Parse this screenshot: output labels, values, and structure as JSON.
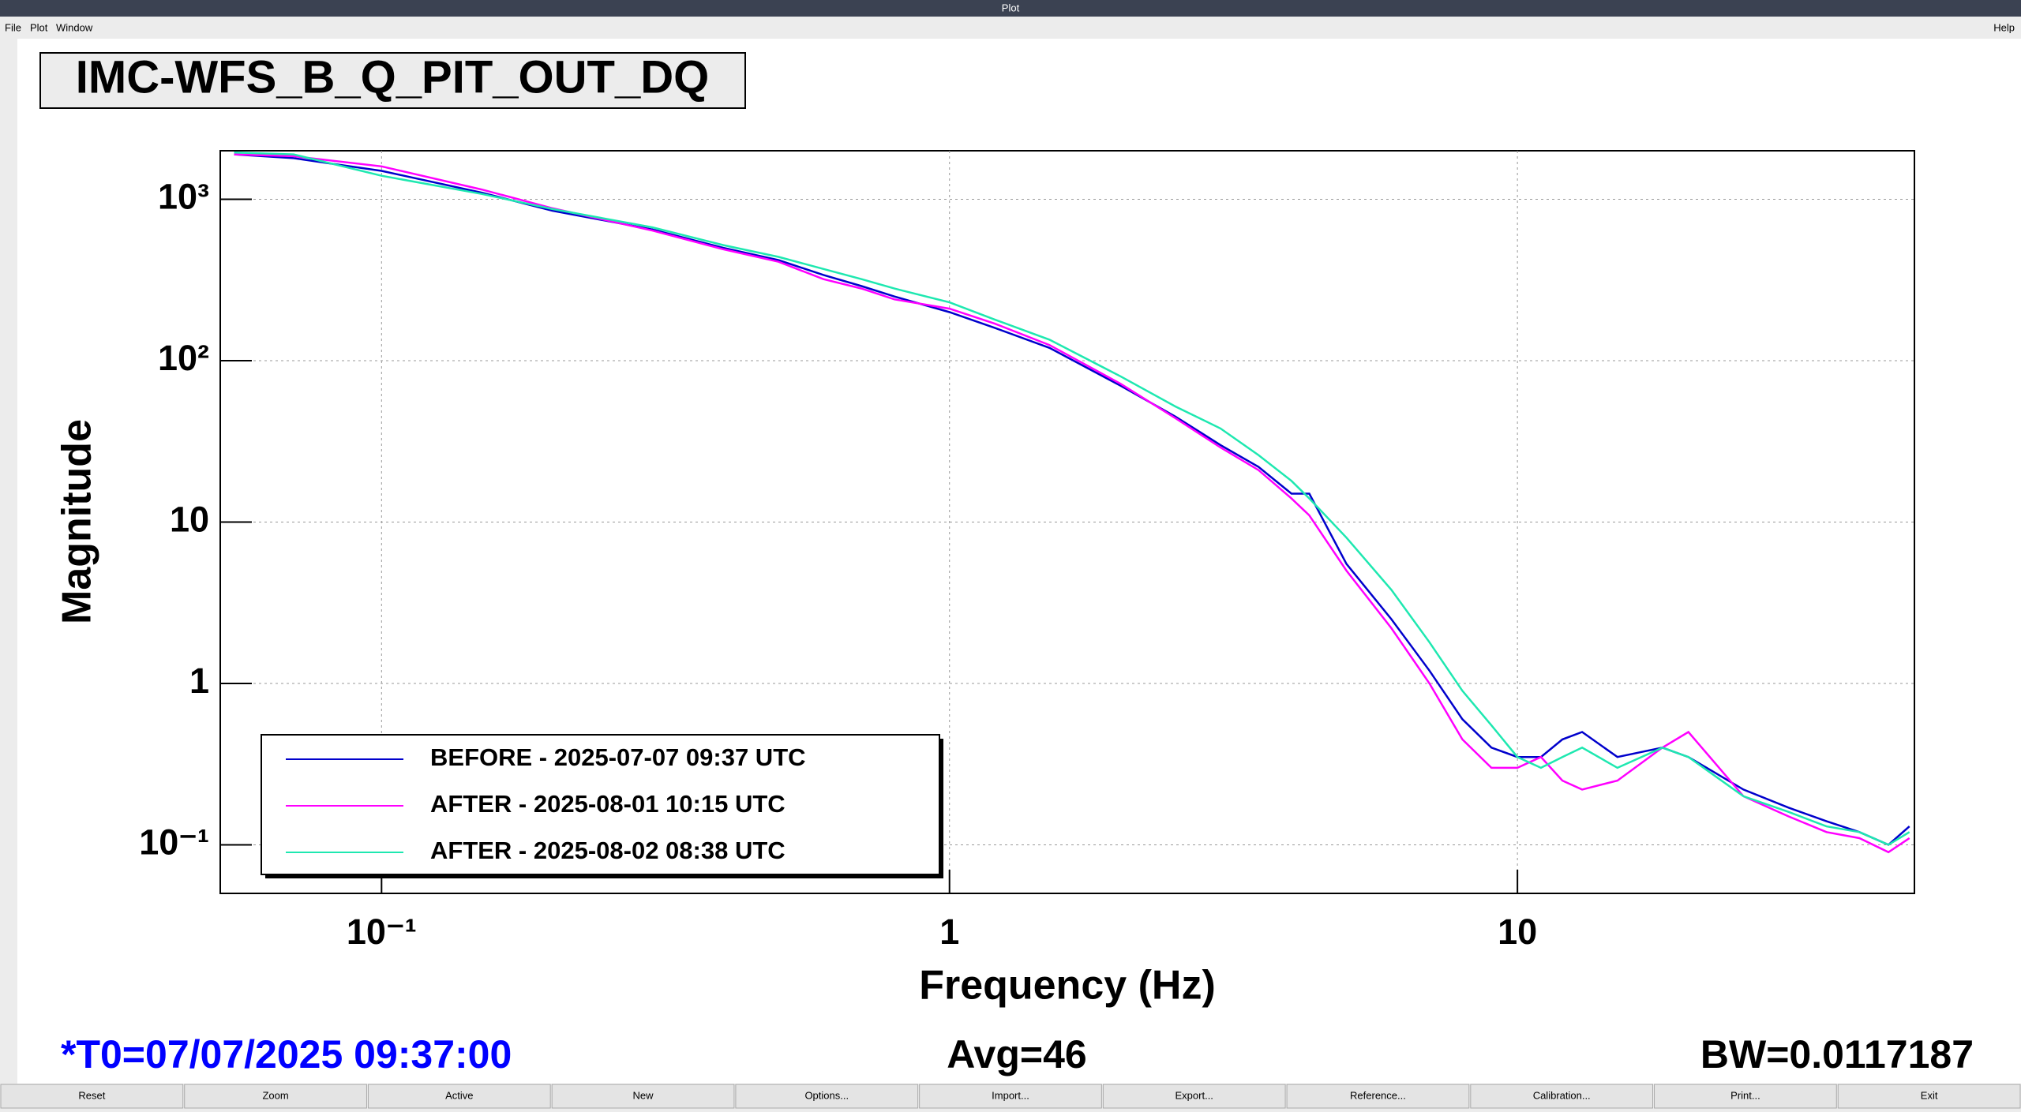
{
  "window": {
    "title": "Plot",
    "menus": [
      "File",
      "Plot",
      "Window"
    ],
    "help": "Help"
  },
  "footer": {
    "t0": "*T0=07/07/2025 09:37:00",
    "avg": "Avg=46",
    "bw": "BW=0.0117187"
  },
  "buttons": [
    "Reset",
    "Zoom",
    "Active",
    "New",
    "Options...",
    "Import...",
    "Export...",
    "Reference...",
    "Calibration...",
    "Print...",
    "Exit"
  ],
  "chart_data": {
    "type": "line",
    "title": "IMC-WFS_B_Q_PIT_OUT_DQ",
    "xlabel": "Frequency (Hz)",
    "ylabel": "Magnitude",
    "xlog": true,
    "ylog": true,
    "grid": true,
    "legend": "lower left",
    "xlim": [
      0.052,
      50
    ],
    "ylim": [
      0.05,
      2000
    ],
    "xticks": [
      {
        "value": 0.1,
        "label": "10⁻¹"
      },
      1,
      10
    ],
    "yticks": [
      {
        "value": 0.1,
        "label": "10⁻¹"
      },
      1,
      10,
      {
        "value": 100,
        "label": "10²"
      },
      {
        "value": 1000,
        "label": "10³"
      }
    ],
    "x": [
      0.055,
      0.07,
      0.1,
      0.15,
      0.2,
      0.3,
      0.4,
      0.5,
      0.6,
      0.7,
      0.8,
      1,
      1.2,
      1.5,
      2,
      2.5,
      3,
      3.5,
      4,
      4.3,
      5,
      6,
      7,
      8,
      9,
      10,
      11,
      12,
      13,
      15,
      18,
      20,
      25,
      30,
      35,
      40,
      45,
      49
    ],
    "series": [
      {
        "name": "BEFORE - 2025-07-07 09:37 UTC",
        "color": "#0000cc",
        "values": [
          1900,
          1800,
          1500,
          1100,
          850,
          650,
          500,
          420,
          340,
          290,
          250,
          200,
          160,
          120,
          70,
          45,
          30,
          22,
          15,
          15,
          5.5,
          2.5,
          1.2,
          0.6,
          0.4,
          0.35,
          0.35,
          0.45,
          0.5,
          0.35,
          0.4,
          0.35,
          0.22,
          0.17,
          0.14,
          0.12,
          0.1,
          0.13
        ]
      },
      {
        "name": "AFTER - 2025-08-01 10:15 UTC",
        "color": "#ff00ff",
        "values": [
          1900,
          1850,
          1600,
          1150,
          880,
          640,
          490,
          410,
          320,
          280,
          240,
          210,
          170,
          125,
          72,
          44,
          29,
          21,
          14,
          11,
          5,
          2.2,
          1,
          0.45,
          0.3,
          0.3,
          0.35,
          0.25,
          0.22,
          0.25,
          0.4,
          0.5,
          0.2,
          0.15,
          0.12,
          0.11,
          0.09,
          0.11
        ]
      },
      {
        "name": "AFTER - 2025-08-02 08:38 UTC",
        "color": "#1ee8b0",
        "values": [
          1950,
          1900,
          1400,
          1080,
          870,
          670,
          520,
          440,
          370,
          320,
          280,
          230,
          180,
          135,
          80,
          52,
          38,
          26,
          18,
          14,
          8,
          3.8,
          1.8,
          0.9,
          0.55,
          0.35,
          0.3,
          0.35,
          0.4,
          0.3,
          0.4,
          0.35,
          0.2,
          0.16,
          0.13,
          0.12,
          0.1,
          0.12
        ]
      }
    ]
  }
}
